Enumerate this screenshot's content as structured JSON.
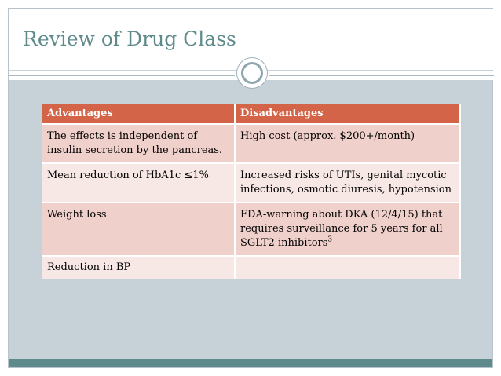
{
  "slide": {
    "title": "Review of Drug Class"
  },
  "table": {
    "headers": [
      "Advantages",
      "Disadvantages"
    ],
    "rows": [
      [
        "The effects is independent of insulin secretion by the pancreas.",
        "High cost (approx. $200+/month)"
      ],
      [
        "Mean reduction of HbA1c ≤1%",
        "Increased risks of UTIs, genital mycotic infections, osmotic diuresis, hypotension"
      ],
      [
        "Weight loss",
        "FDA-warning about DKA (12/4/15) that requires surveillance for 5 years for all SGLT2 inhibitors"
      ],
      [
        "Reduction in BP",
        ""
      ]
    ],
    "footnote_marker": "3"
  },
  "colors": {
    "title": "#5f8a8b",
    "header_bg": "#d36447",
    "row_odd": "#efd0cb",
    "row_even": "#f7e8e5",
    "slide_bg": "#c6d1d8",
    "bottom_bar": "#5f8a8b"
  },
  "icons": [
    "ring-ornament-icon"
  ]
}
